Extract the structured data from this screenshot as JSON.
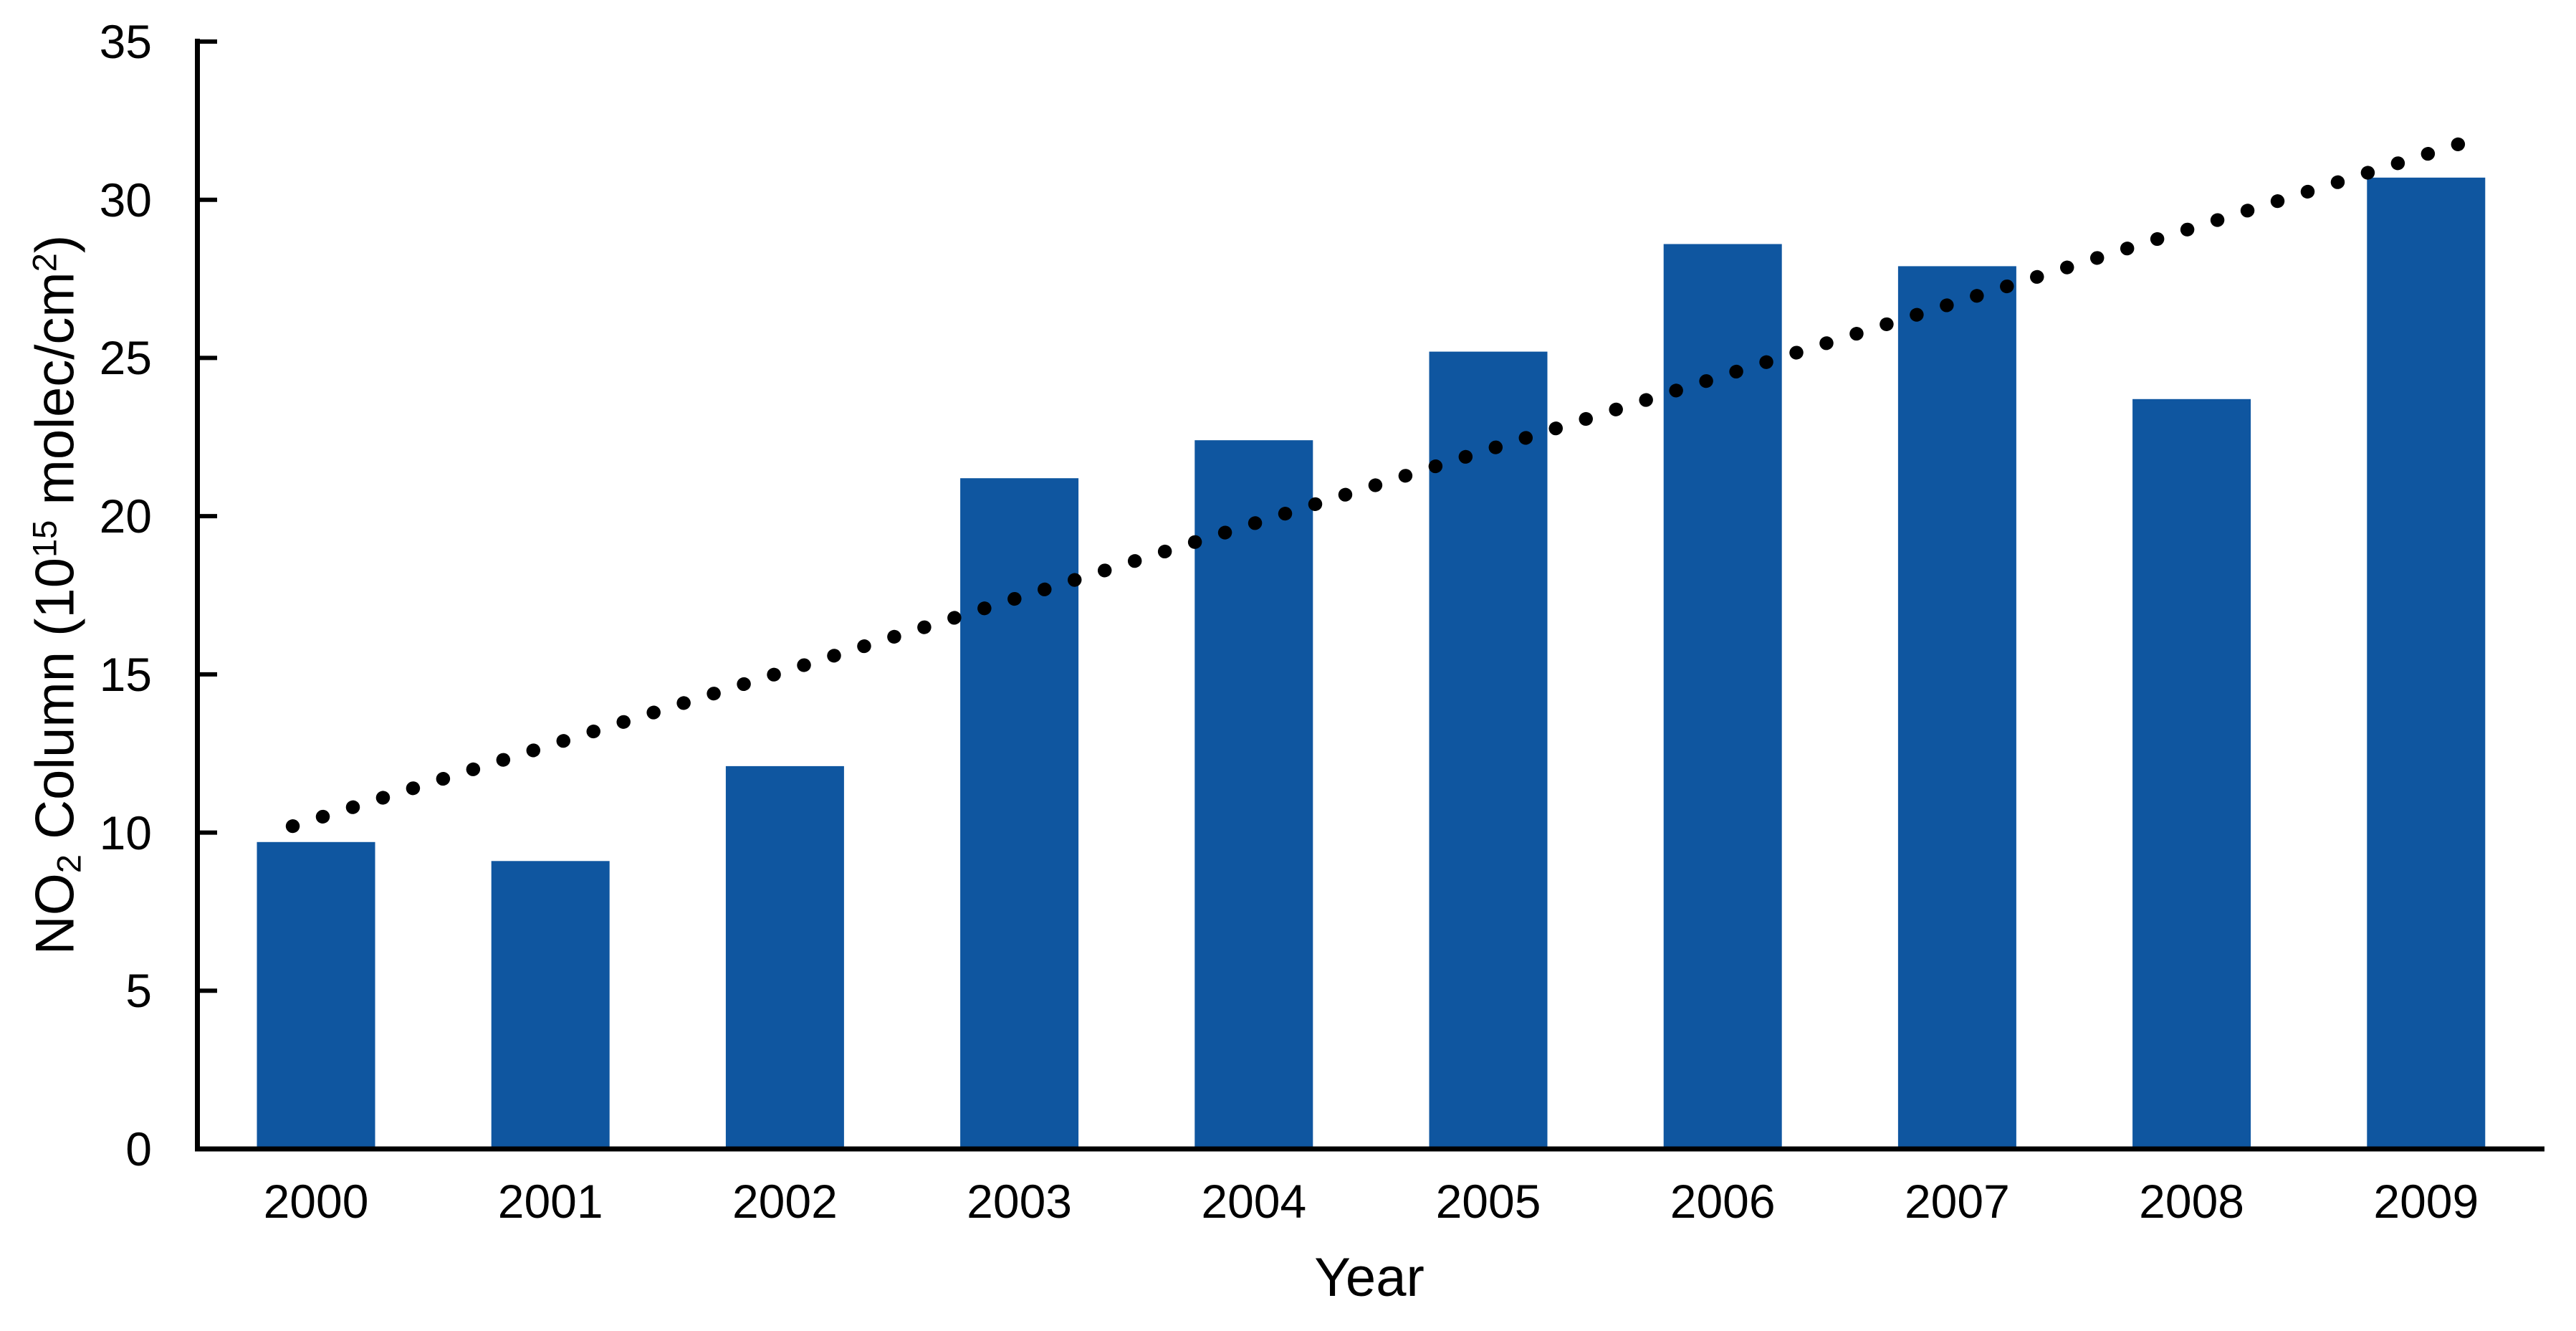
{
  "figure": {
    "background_color": "#ffffff",
    "text_color": "#000000"
  },
  "chart_data": {
    "type": "bar",
    "title": "",
    "xlabel": "Year",
    "ylabel_plain": "NO2 Column (10^15 molec/cm^2)",
    "ylabel_rich": {
      "t1": "NO",
      "sub1": "2",
      "t2": " Column (10",
      "sup1": "15",
      "t3": " molec/cm",
      "sup2": "2",
      "t4": ")"
    },
    "categories": [
      "2000",
      "2001",
      "2002",
      "2003",
      "2004",
      "2005",
      "2006",
      "2007",
      "2008",
      "2009"
    ],
    "values": [
      9.7,
      9.1,
      12.1,
      21.2,
      22.4,
      25.2,
      28.6,
      27.9,
      23.7,
      30.7
    ],
    "bar_color": "#0F56A0",
    "ylim": [
      0,
      35
    ],
    "yticks": [
      0,
      5,
      10,
      15,
      20,
      25,
      30,
      35
    ],
    "grid": false,
    "legend": null,
    "axis_color": "#000000",
    "trendline": {
      "style": "dotted",
      "color": "#000000",
      "start_year_offset": -0.1,
      "start_value": 10.2,
      "end_year_offset": 9.2,
      "end_value": 31.9
    }
  }
}
